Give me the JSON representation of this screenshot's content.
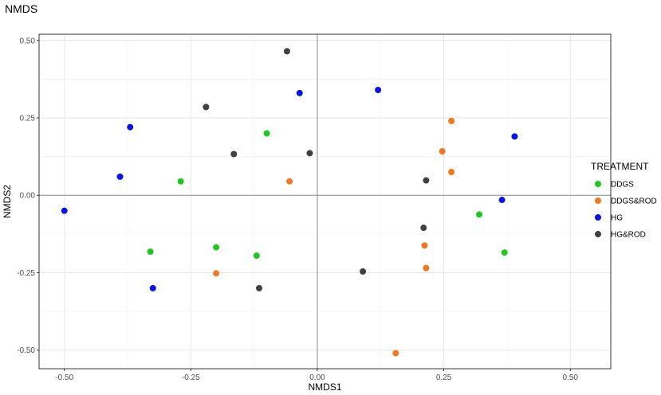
{
  "chart_data": {
    "type": "scatter",
    "title": "NMDS",
    "xlabel": "NMDS1",
    "ylabel": "NMDS2",
    "xlim": [
      -0.55,
      0.58
    ],
    "ylim": [
      -0.56,
      0.52
    ],
    "xticks": [
      -0.5,
      -0.25,
      0.0,
      0.25,
      0.5
    ],
    "xtick_labels": [
      "-0.50",
      "-0.25",
      "0.00",
      "0.25",
      "0.50"
    ],
    "yticks": [
      -0.5,
      -0.25,
      0.0,
      0.25,
      0.5
    ],
    "ytick_labels": [
      "-0.50",
      "-0.25",
      "0.00",
      "0.25",
      "0.50"
    ],
    "grid": true,
    "reference_lines": {
      "x": 0,
      "y": 0
    },
    "legend": {
      "title": "TREATMENT",
      "position": "right"
    },
    "series": [
      {
        "name": "DDGS",
        "color": "#1ec81e",
        "points": [
          {
            "x": -0.27,
            "y": 0.045
          },
          {
            "x": -0.1,
            "y": 0.2
          },
          {
            "x": -0.33,
            "y": -0.182
          },
          {
            "x": -0.2,
            "y": -0.168
          },
          {
            "x": -0.12,
            "y": -0.195
          },
          {
            "x": 0.32,
            "y": -0.062
          },
          {
            "x": 0.37,
            "y": -0.185
          }
        ]
      },
      {
        "name": "DDGS&ROD",
        "color": "#f07820",
        "points": [
          {
            "x": -0.055,
            "y": 0.045
          },
          {
            "x": -0.2,
            "y": -0.252
          },
          {
            "x": 0.265,
            "y": 0.24
          },
          {
            "x": 0.247,
            "y": 0.142
          },
          {
            "x": 0.265,
            "y": 0.075
          },
          {
            "x": 0.212,
            "y": -0.162
          },
          {
            "x": 0.215,
            "y": -0.235
          },
          {
            "x": 0.155,
            "y": -0.51
          }
        ]
      },
      {
        "name": "HG",
        "color": "#0a14e6",
        "points": [
          {
            "x": -0.5,
            "y": -0.05
          },
          {
            "x": -0.39,
            "y": 0.06
          },
          {
            "x": -0.37,
            "y": 0.22
          },
          {
            "x": -0.325,
            "y": -0.3
          },
          {
            "x": -0.035,
            "y": 0.33
          },
          {
            "x": 0.12,
            "y": 0.34
          },
          {
            "x": 0.39,
            "y": 0.19
          },
          {
            "x": 0.365,
            "y": -0.015
          }
        ]
      },
      {
        "name": "HG&ROD",
        "color": "#404040",
        "points": [
          {
            "x": -0.06,
            "y": 0.465
          },
          {
            "x": -0.22,
            "y": 0.285
          },
          {
            "x": -0.165,
            "y": 0.133
          },
          {
            "x": -0.015,
            "y": 0.136
          },
          {
            "x": -0.115,
            "y": -0.3
          },
          {
            "x": 0.215,
            "y": 0.048
          },
          {
            "x": 0.21,
            "y": -0.105
          },
          {
            "x": 0.09,
            "y": -0.246
          }
        ]
      }
    ]
  }
}
